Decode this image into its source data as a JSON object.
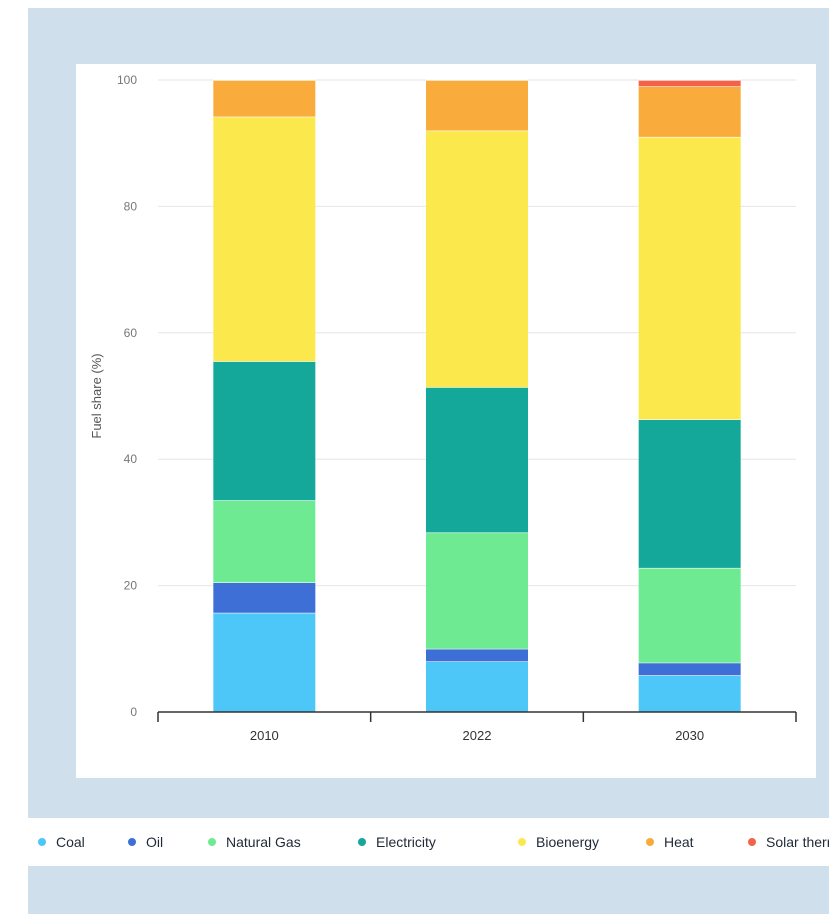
{
  "chart_data": {
    "type": "bar",
    "stacked": true,
    "ylabel": "Fuel share (%)",
    "xlabel": "",
    "ylim": [
      0,
      100
    ],
    "yticks": [
      0,
      20,
      40,
      60,
      80,
      100
    ],
    "grid": true,
    "legend_position": "bottom",
    "categories": [
      "2010",
      "2022",
      "2030"
    ],
    "series": [
      {
        "name": "Coal",
        "color": "#4dc7f7",
        "values": [
          15.7,
          8.0,
          5.8
        ]
      },
      {
        "name": "Oil",
        "color": "#3d6fd6",
        "values": [
          4.8,
          2.0,
          2.0
        ]
      },
      {
        "name": "Natural Gas",
        "color": "#6eea92",
        "values": [
          13.0,
          18.4,
          15.0
        ]
      },
      {
        "name": "Electricity",
        "color": "#14a89b",
        "values": [
          22.0,
          23.0,
          23.5
        ]
      },
      {
        "name": "Bioenergy",
        "color": "#fbe84d",
        "values": [
          38.7,
          40.6,
          44.7
        ]
      },
      {
        "name": "Heat",
        "color": "#f9ab3c",
        "values": [
          5.8,
          8.0,
          8.0
        ]
      },
      {
        "name": "Solar therr",
        "color": "#f26349",
        "values": [
          0.0,
          0.0,
          1.0
        ]
      }
    ]
  }
}
